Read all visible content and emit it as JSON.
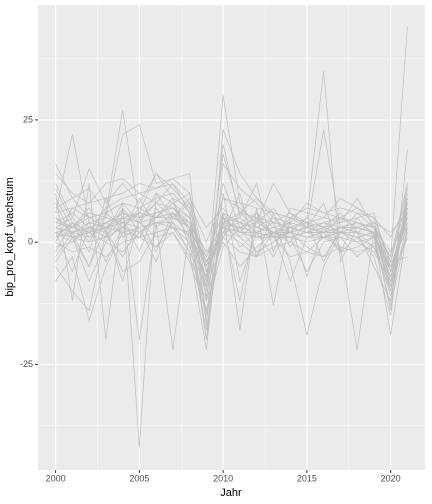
{
  "chart_data": {
    "type": "line",
    "x_label": "Jahr",
    "y_label": "bip_pro_kopf_wachstum",
    "x": [
      2000,
      2001,
      2002,
      2003,
      2004,
      2005,
      2006,
      2007,
      2008,
      2009,
      2010,
      2011,
      2012,
      2013,
      2014,
      2015,
      2016,
      2017,
      2018,
      2019,
      2020,
      2021
    ],
    "color": "#bebebe",
    "series": [
      {
        "values": [
          3,
          1,
          2,
          3,
          4,
          3,
          4,
          4,
          1,
          -4,
          3,
          2,
          1,
          1,
          2,
          1,
          2,
          2,
          2,
          1,
          -6,
          5
        ]
      },
      {
        "values": [
          5,
          2,
          3,
          4,
          6,
          5,
          6,
          7,
          3,
          -8,
          5,
          4,
          1,
          2,
          3,
          2,
          2,
          3,
          3,
          2,
          -8,
          7
        ]
      },
      {
        "values": [
          16,
          9,
          5,
          6,
          8,
          7,
          9,
          10,
          6,
          -15,
          4,
          3,
          2,
          3,
          4,
          3,
          2,
          3,
          3,
          2,
          -10,
          9
        ]
      },
      {
        "values": [
          4,
          3,
          5,
          6,
          8,
          -42,
          10,
          8,
          5,
          -3,
          4,
          6,
          5,
          4,
          3,
          2,
          2,
          3,
          4,
          3,
          -5,
          6
        ]
      },
      {
        "values": [
          2,
          1,
          0,
          1,
          3,
          2,
          4,
          5,
          3,
          -5,
          2,
          3,
          4,
          2,
          1,
          0,
          1,
          2,
          1,
          2,
          -3,
          44
        ]
      },
      {
        "values": [
          3,
          2,
          4,
          5,
          4,
          6,
          5,
          5,
          4,
          -2,
          3,
          4,
          6,
          3,
          2,
          5,
          35,
          -4,
          3,
          2,
          -6,
          8
        ]
      },
      {
        "values": [
          8,
          1,
          -5,
          6,
          27,
          5,
          8,
          7,
          5,
          -6,
          4,
          3,
          2,
          1,
          1,
          2,
          3,
          2,
          1,
          2,
          -7,
          5
        ]
      },
      {
        "values": [
          2,
          3,
          2,
          4,
          5,
          6,
          5,
          6,
          4,
          -10,
          30,
          8,
          3,
          2,
          2,
          1,
          1,
          2,
          3,
          2,
          -9,
          6
        ]
      },
      {
        "values": [
          6,
          22,
          4,
          3,
          5,
          4,
          5,
          6,
          3,
          -4,
          3,
          2,
          2,
          1,
          2,
          3,
          2,
          3,
          2,
          1,
          -5,
          4
        ]
      },
      {
        "values": [
          -8,
          -3,
          -16,
          -5,
          2,
          3,
          4,
          3,
          0,
          -18,
          4,
          -12,
          5,
          1,
          -3,
          -2,
          1,
          -1,
          -22,
          2,
          -19,
          3
        ]
      },
      {
        "values": [
          -5,
          -10,
          -14,
          2,
          -6,
          -4,
          2,
          3,
          -2,
          -22,
          10,
          -8,
          2,
          4,
          -4,
          -19,
          -5,
          2,
          1,
          -3,
          -15,
          12
        ]
      },
      {
        "values": [
          10,
          -12,
          12,
          -20,
          7,
          -20,
          4,
          -22,
          3,
          -20,
          6,
          -18,
          7,
          -13,
          5,
          4,
          -4,
          3,
          4,
          2,
          -14,
          19
        ]
      },
      {
        "values": [
          12,
          5,
          15,
          8,
          12,
          8,
          14,
          9,
          7,
          -8,
          18,
          6,
          9,
          5,
          4,
          8,
          6,
          5,
          7,
          5,
          -4,
          11
        ]
      },
      {
        "values": [
          4,
          3,
          6,
          5,
          22,
          24,
          12,
          13,
          10,
          -12,
          20,
          5,
          2,
          4,
          6,
          3,
          23,
          3,
          2,
          -5,
          -12,
          10
        ]
      },
      {
        "values": [
          0,
          -2,
          -1,
          -3,
          0,
          1,
          -1,
          2,
          -3,
          -12,
          1,
          -2,
          -3,
          -1,
          0,
          -2,
          -3,
          -1,
          -2,
          -1,
          -9,
          2
        ]
      },
      {
        "values": [
          1,
          4,
          2,
          7,
          9,
          10,
          8,
          12,
          6,
          -20,
          16,
          11,
          8,
          4,
          3,
          2,
          4,
          5,
          4,
          3,
          -10,
          7
        ]
      },
      {
        "values": [
          6,
          7,
          8,
          9,
          10,
          12,
          11,
          13,
          14,
          -17,
          23,
          14,
          9,
          6,
          5,
          4,
          3,
          4,
          5,
          6,
          -6,
          8
        ]
      },
      {
        "values": [
          2,
          0,
          4,
          -4,
          3,
          6,
          5,
          8,
          10,
          -5,
          9,
          7,
          4,
          12,
          6,
          4,
          5,
          9,
          7,
          4,
          2,
          6
        ]
      },
      {
        "values": [
          -3,
          2,
          -5,
          3,
          -8,
          5,
          -2,
          6,
          1,
          -14,
          2,
          0,
          -3,
          2,
          1,
          -6,
          0,
          1,
          -3,
          0,
          -11,
          4
        ]
      },
      {
        "values": [
          9,
          3,
          7,
          2,
          8,
          4,
          10,
          5,
          9,
          3,
          7,
          2,
          6,
          1,
          5,
          3,
          4,
          2,
          6,
          3,
          -2,
          5
        ]
      },
      {
        "values": [
          3,
          5,
          1,
          4,
          2,
          9,
          3,
          6,
          1,
          -7,
          12,
          3,
          5,
          2,
          4,
          3,
          2,
          5,
          3,
          4,
          -4,
          9
        ]
      },
      {
        "values": [
          -4,
          1,
          -8,
          0,
          -2,
          2,
          -1,
          4,
          -2,
          -9,
          0,
          -5,
          -1,
          2,
          -8,
          1,
          2,
          -2,
          -1,
          1,
          -13,
          3
        ]
      },
      {
        "values": [
          14,
          10,
          8,
          12,
          13,
          10,
          11,
          12,
          8,
          0,
          9,
          8,
          7,
          6,
          5,
          7,
          6,
          7,
          6,
          5,
          1,
          8
        ]
      },
      {
        "values": [
          2,
          -6,
          3,
          1,
          5,
          -2,
          7,
          3,
          2,
          -11,
          5,
          -1,
          2,
          -3,
          4,
          -7,
          3,
          -2,
          1,
          -1,
          -7,
          7
        ]
      },
      {
        "values": [
          5,
          3,
          2,
          0,
          4,
          6,
          14,
          11,
          7,
          -6,
          3,
          1,
          -2,
          0,
          3,
          4,
          2,
          5,
          4,
          3,
          -5,
          4
        ]
      },
      {
        "values": [
          -1,
          0,
          3,
          2,
          -3,
          4,
          1,
          2,
          -4,
          -14,
          -1,
          3,
          -2,
          0,
          2,
          -1,
          -3,
          2,
          0,
          -2,
          -8,
          1
        ]
      },
      {
        "values": [
          7,
          9,
          11,
          6,
          3,
          7,
          5,
          9,
          -1,
          -7,
          4,
          5,
          12,
          -2,
          7,
          6,
          5,
          4,
          9,
          3,
          -3,
          12
        ]
      },
      {
        "values": [
          1,
          2,
          1,
          3,
          2,
          1,
          2,
          3,
          2,
          -16,
          5,
          2,
          1,
          2,
          1,
          2,
          1,
          1,
          0,
          1,
          -5,
          3
        ]
      },
      {
        "values": [
          4,
          6,
          3,
          1,
          7,
          2,
          5,
          8,
          2,
          -3,
          6,
          1,
          4,
          7,
          2,
          5,
          3,
          6,
          2,
          4,
          -8,
          6
        ]
      },
      {
        "values": [
          11,
          4,
          -2,
          9,
          1,
          3,
          -4,
          5,
          8,
          -6,
          2,
          10,
          -3,
          6,
          -1,
          3,
          8,
          -2,
          5,
          1,
          -4,
          -3
        ]
      },
      {
        "values": [
          0,
          7,
          5,
          3,
          6,
          4,
          8,
          5,
          3,
          -9,
          6,
          4,
          3,
          5,
          2,
          3,
          4,
          3,
          4,
          3,
          -6,
          5
        ]
      },
      {
        "values": [
          -2,
          4,
          0,
          6,
          3,
          1,
          6,
          7,
          4,
          -4,
          1,
          6,
          3,
          2,
          0,
          4,
          1,
          3,
          2,
          -1,
          -10,
          8
        ]
      }
    ],
    "xlim": [
      1998.95,
      2022.05
    ],
    "xticks": [
      2000,
      2005,
      2010,
      2015,
      2020
    ],
    "xminor": [
      2002.5,
      2007.5,
      2012.5,
      2017.5
    ],
    "ylim": [
      -46.6,
      48.5
    ],
    "yticks": [
      -25,
      0,
      25
    ],
    "yminor": [
      -37.5,
      -12.5,
      12.5,
      37.5
    ],
    "grid": true
  }
}
